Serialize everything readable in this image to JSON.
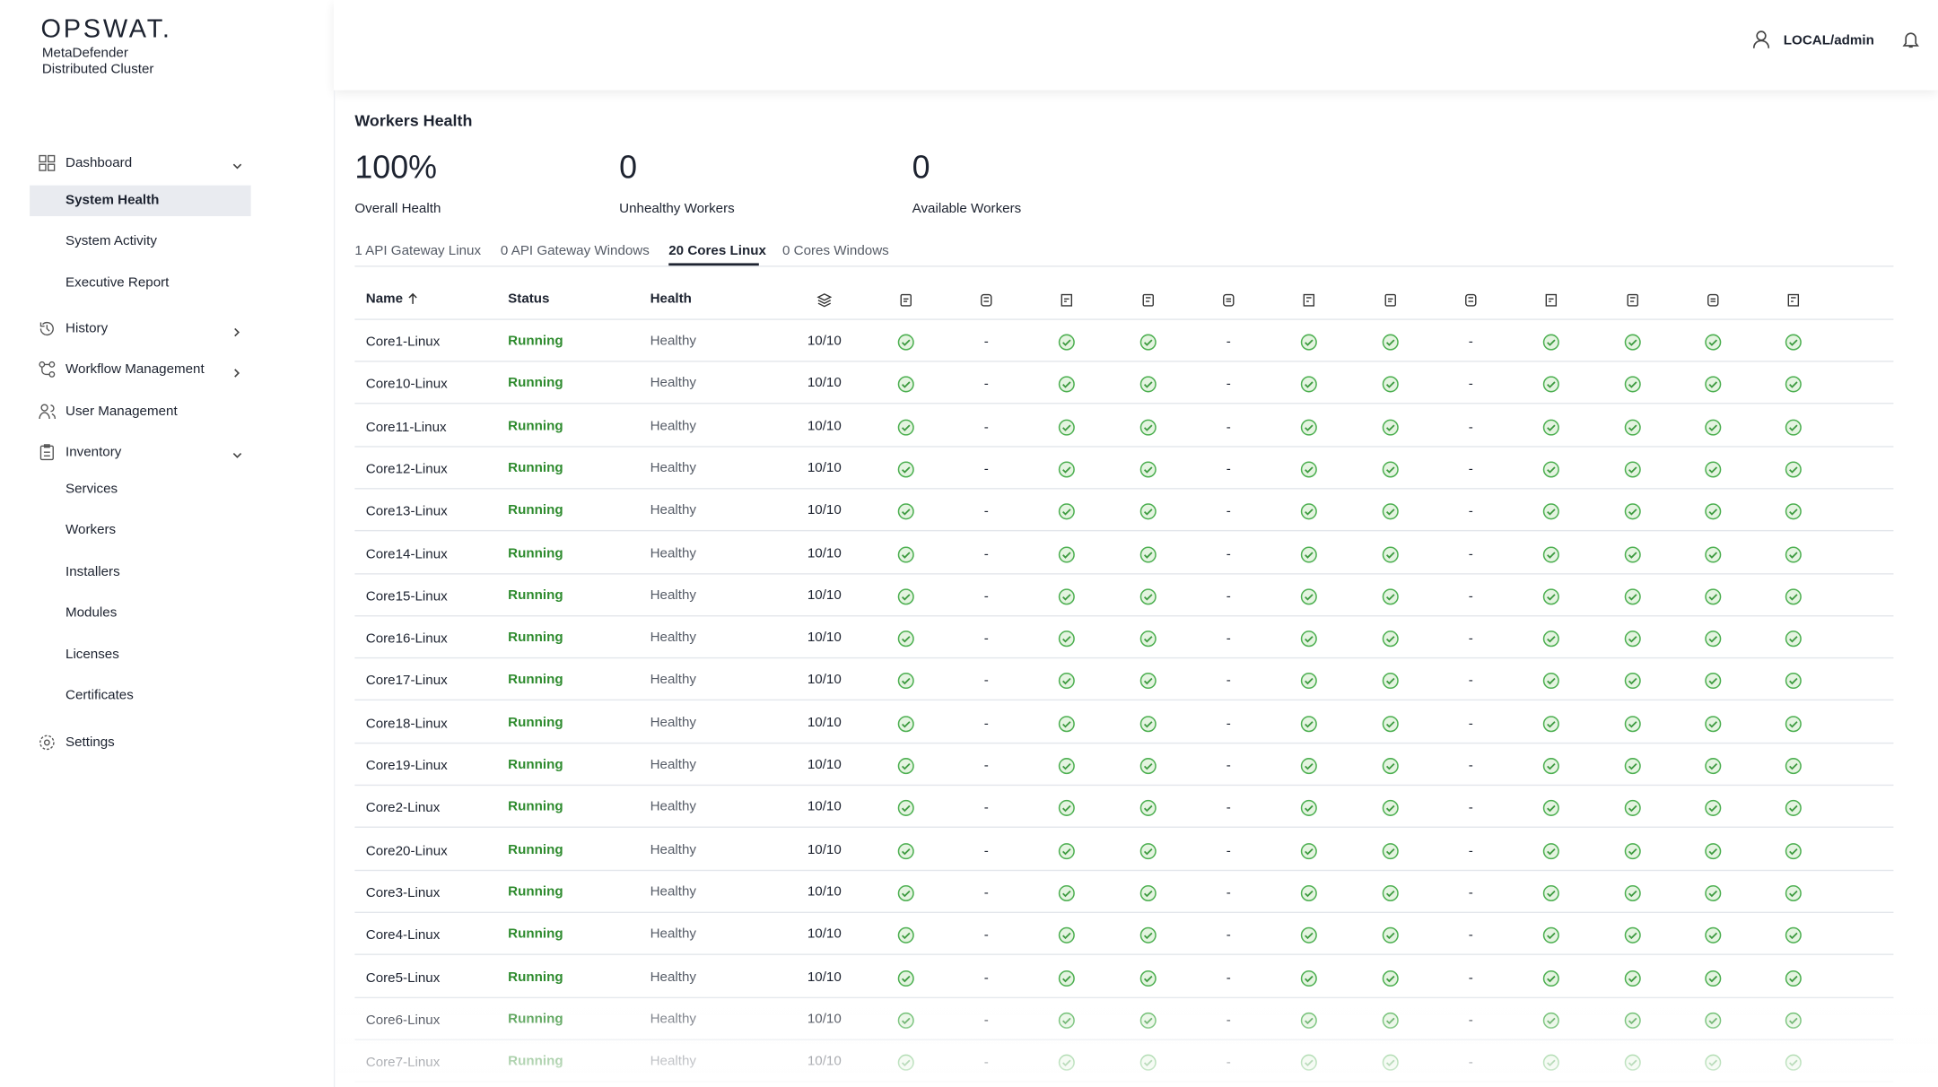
{
  "sidebar": {
    "logo": "OPSWAT.",
    "product": [
      "MetaDefender",
      "Distributed Cluster"
    ],
    "nav": [
      {
        "label": "Dashboard",
        "expanded": true,
        "children": [
          "System Health",
          "System Activity",
          "Executive Report"
        ]
      },
      {
        "label": "History",
        "expanded": false
      },
      {
        "label": "Workflow Management",
        "expanded": false
      },
      {
        "label": "User Management"
      },
      {
        "label": "Inventory",
        "expanded": true,
        "children": [
          "Services",
          "Workers",
          "Installers",
          "Modules",
          "Licenses",
          "Certificates"
        ]
      },
      {
        "label": "Settings"
      }
    ],
    "selected": [
      0,
      0
    ]
  },
  "header": {
    "user": "LOCAL/admin"
  },
  "workers_health": {
    "title": "Workers Health",
    "stats": [
      {
        "value": "100%",
        "label": "Overall Health"
      },
      {
        "value": "0",
        "label": "Unhealthy Workers"
      },
      {
        "value": "0",
        "label": "Available Workers"
      }
    ],
    "tabs": [
      "1 API Gateway Linux",
      "0 API Gateway Windows",
      "20 Cores Linux",
      "0 Cores Windows"
    ],
    "active_tab": 2,
    "table": {
      "columns": [
        "Name",
        "Status",
        "Health"
      ],
      "rows": [
        {
          "name": "Core1-Linux",
          "status": "Running",
          "health": "Healthy",
          "count": "10/10",
          "cells": [
            true,
            "-",
            true,
            true,
            "-",
            true,
            true,
            "-",
            true,
            true,
            true,
            true
          ]
        },
        {
          "name": "Core10-Linux",
          "status": "Running",
          "health": "Healthy",
          "count": "10/10",
          "cells": [
            true,
            "-",
            true,
            true,
            "-",
            true,
            true,
            "-",
            true,
            true,
            true,
            true
          ]
        },
        {
          "name": "Core11-Linux",
          "status": "Running",
          "health": "Healthy",
          "count": "10/10",
          "cells": [
            true,
            "-",
            true,
            true,
            "-",
            true,
            true,
            "-",
            true,
            true,
            true,
            true
          ]
        },
        {
          "name": "Core12-Linux",
          "status": "Running",
          "health": "Healthy",
          "count": "10/10",
          "cells": [
            true,
            "-",
            true,
            true,
            "-",
            true,
            true,
            "-",
            true,
            true,
            true,
            true
          ]
        },
        {
          "name": "Core13-Linux",
          "status": "Running",
          "health": "Healthy",
          "count": "10/10",
          "cells": [
            true,
            "-",
            true,
            true,
            "-",
            true,
            true,
            "-",
            true,
            true,
            true,
            true
          ]
        },
        {
          "name": "Core14-Linux",
          "status": "Running",
          "health": "Healthy",
          "count": "10/10",
          "cells": [
            true,
            "-",
            true,
            true,
            "-",
            true,
            true,
            "-",
            true,
            true,
            true,
            true
          ]
        },
        {
          "name": "Core15-Linux",
          "status": "Running",
          "health": "Healthy",
          "count": "10/10",
          "cells": [
            true,
            "-",
            true,
            true,
            "-",
            true,
            true,
            "-",
            true,
            true,
            true,
            true
          ]
        },
        {
          "name": "Core16-Linux",
          "status": "Running",
          "health": "Healthy",
          "count": "10/10",
          "cells": [
            true,
            "-",
            true,
            true,
            "-",
            true,
            true,
            "-",
            true,
            true,
            true,
            true
          ]
        },
        {
          "name": "Core17-Linux",
          "status": "Running",
          "health": "Healthy",
          "count": "10/10",
          "cells": [
            true,
            "-",
            true,
            true,
            "-",
            true,
            true,
            "-",
            true,
            true,
            true,
            true
          ]
        },
        {
          "name": "Core18-Linux",
          "status": "Running",
          "health": "Healthy",
          "count": "10/10",
          "cells": [
            true,
            "-",
            true,
            true,
            "-",
            true,
            true,
            "-",
            true,
            true,
            true,
            true
          ]
        },
        {
          "name": "Core19-Linux",
          "status": "Running",
          "health": "Healthy",
          "count": "10/10",
          "cells": [
            true,
            "-",
            true,
            true,
            "-",
            true,
            true,
            "-",
            true,
            true,
            true,
            true
          ]
        },
        {
          "name": "Core2-Linux",
          "status": "Running",
          "health": "Healthy",
          "count": "10/10",
          "cells": [
            true,
            "-",
            true,
            true,
            "-",
            true,
            true,
            "-",
            true,
            true,
            true,
            true
          ]
        },
        {
          "name": "Core20-Linux",
          "status": "Running",
          "health": "Healthy",
          "count": "10/10",
          "cells": [
            true,
            "-",
            true,
            true,
            "-",
            true,
            true,
            "-",
            true,
            true,
            true,
            true
          ]
        },
        {
          "name": "Core3-Linux",
          "status": "Running",
          "health": "Healthy",
          "count": "10/10",
          "cells": [
            true,
            "-",
            true,
            true,
            "-",
            true,
            true,
            "-",
            true,
            true,
            true,
            true
          ]
        },
        {
          "name": "Core4-Linux",
          "status": "Running",
          "health": "Healthy",
          "count": "10/10",
          "cells": [
            true,
            "-",
            true,
            true,
            "-",
            true,
            true,
            "-",
            true,
            true,
            true,
            true
          ]
        },
        {
          "name": "Core5-Linux",
          "status": "Running",
          "health": "Healthy",
          "count": "10/10",
          "cells": [
            true,
            "-",
            true,
            true,
            "-",
            true,
            true,
            "-",
            true,
            true,
            true,
            true
          ]
        },
        {
          "name": "Core6-Linux",
          "status": "Running",
          "health": "Healthy",
          "count": "10/10",
          "cells": [
            true,
            "-",
            true,
            true,
            "-",
            true,
            true,
            "-",
            true,
            true,
            true,
            true
          ]
        },
        {
          "name": "Core7-Linux",
          "status": "Running",
          "health": "Healthy",
          "count": "10/10",
          "cells": [
            true,
            "-",
            true,
            true,
            "-",
            true,
            true,
            "-",
            true,
            true,
            true,
            true
          ]
        }
      ]
    }
  }
}
